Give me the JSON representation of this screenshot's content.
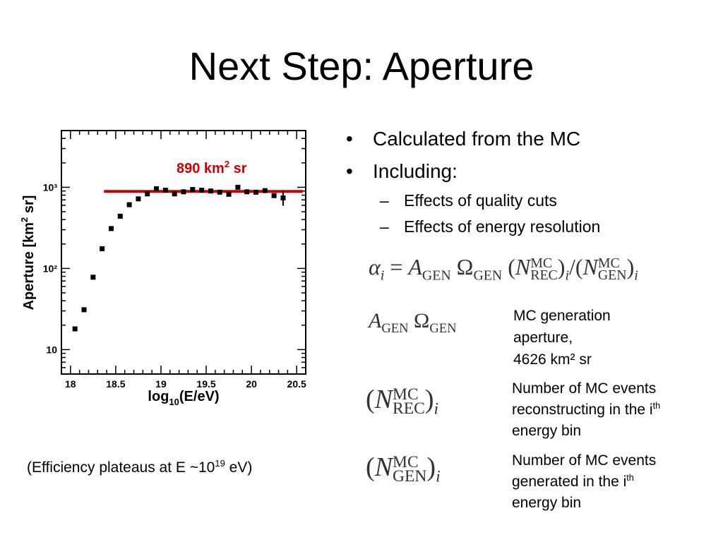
{
  "slide": {
    "title": "Next Step: Aperture",
    "bullets": [
      {
        "text": "Calculated from the MC",
        "marker": "•"
      },
      {
        "text": "Including:",
        "marker": "•",
        "subitems": [
          {
            "text": "Effects of quality cuts",
            "marker": "–"
          },
          {
            "text": "Effects of energy resolution",
            "marker": "–"
          }
        ]
      }
    ],
    "caption": {
      "pre": "(Efficiency plateaus at E ~10",
      "exp": "19",
      "post": " eV)"
    },
    "formula": {
      "alpha": "α",
      "i": "i",
      "eq": " = ",
      "A": "A",
      "gen": "GEN",
      "omega": "Ω",
      "N": "N",
      "mc": "MC",
      "rec": "REC",
      "div": "/",
      "lp": "(",
      "rp": ")"
    },
    "definitions": [
      {
        "symbol": "A_GEN Ω_GEN",
        "lines": [
          "MC generation",
          "aperture,",
          "4626 km² sr"
        ]
      },
      {
        "symbol": "(N^MC_REC)_i",
        "line1": "Number of MC events",
        "line2_pre": "reconstructing in the i",
        "line2_sup": "th",
        "line3": "energy bin"
      },
      {
        "symbol": "(N^MC_GEN)_i",
        "line1": "Number of MC events",
        "line2_pre": "generated in the i",
        "line2_sup": "th",
        "line3": "energy bin"
      }
    ]
  },
  "chart_data": {
    "type": "scatter",
    "xlabel": "log10(E/eV)",
    "ylabel": "Aperture [km² sr]",
    "xlim": [
      17.9,
      20.6
    ],
    "ylim": [
      5,
      5000
    ],
    "yscale": "log",
    "xticks": [
      "18",
      "18.5",
      "19",
      "19.5",
      "20",
      "20.5"
    ],
    "yticks": [
      "10",
      "10²",
      "10³"
    ],
    "series": [
      {
        "x": [
          18.05,
          18.15,
          18.25,
          18.35,
          18.45,
          18.55,
          18.65,
          18.75,
          18.85,
          18.95,
          19.05,
          19.15,
          19.25,
          19.35,
          19.45,
          19.55,
          19.65,
          19.75,
          19.85,
          19.95,
          20.05,
          20.15,
          20.25,
          20.35
        ],
        "y": [
          18,
          31,
          78,
          175,
          310,
          440,
          610,
          720,
          830,
          960,
          920,
          830,
          880,
          940,
          920,
          900,
          870,
          820,
          1000,
          880,
          870,
          910,
          790,
          740
        ]
      }
    ],
    "plateau": {
      "value": 890,
      "x_range": [
        18.37,
        20.57
      ],
      "label_value": "890 km",
      "label_exp": "2",
      "label_unit": " sr",
      "color": "#cc0000"
    }
  }
}
